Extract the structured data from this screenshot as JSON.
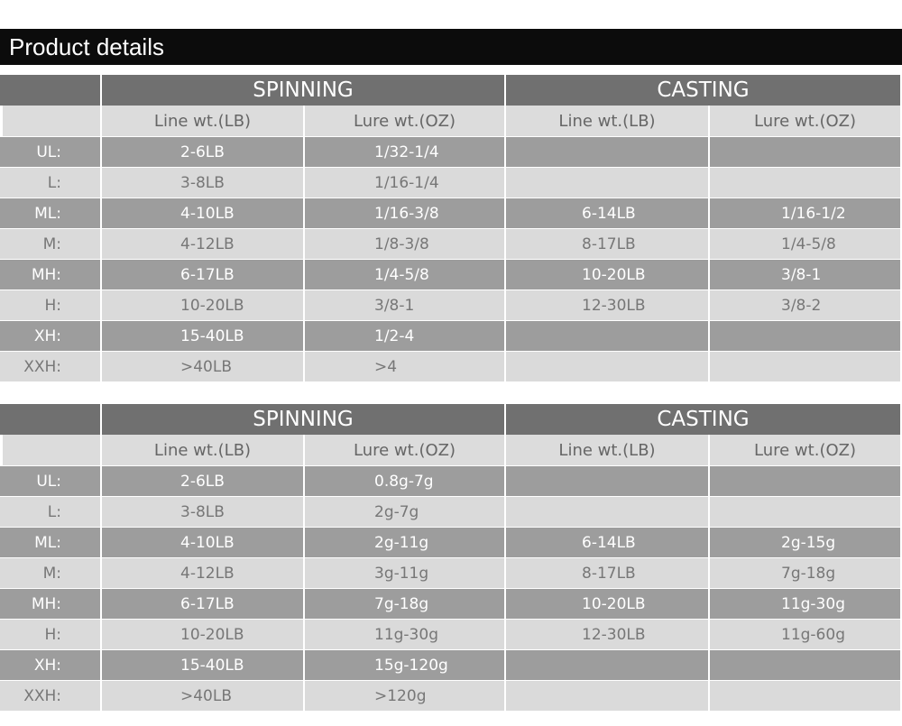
{
  "title": "Product details",
  "tables": [
    {
      "headers": [
        "SPINNING",
        "CASTING"
      ],
      "subheaders": [
        "Line wt.(LB)",
        "Lure wt.(OZ)",
        "Line wt.(LB)",
        "Lure wt.(OZ)"
      ],
      "rows": [
        {
          "label": "UL:",
          "cells": [
            "2-6LB",
            "1/32-1/4",
            null,
            null
          ]
        },
        {
          "label": "L:",
          "cells": [
            "3-8LB",
            "1/16-1/4",
            null,
            null
          ]
        },
        {
          "label": "ML:",
          "cells": [
            "4-10LB",
            "1/16-3/8",
            "6-14LB",
            "1/16-1/2"
          ]
        },
        {
          "label": "M:",
          "cells": [
            "4-12LB",
            "1/8-3/8",
            "8-17LB",
            "1/4-5/8"
          ]
        },
        {
          "label": "MH:",
          "cells": [
            "6-17LB",
            "1/4-5/8",
            "10-20LB",
            "3/8-1"
          ]
        },
        {
          "label": "H:",
          "cells": [
            "10-20LB",
            "3/8-1",
            "12-30LB",
            "3/8-2"
          ]
        },
        {
          "label": "XH:",
          "cells": [
            "15-40LB",
            "1/2-4",
            null,
            null
          ]
        },
        {
          "label": "XXH:",
          "cells": [
            ">40LB",
            ">4",
            null,
            null
          ]
        }
      ]
    },
    {
      "headers": [
        "SPINNING",
        "CASTING"
      ],
      "subheaders": [
        "Line wt.(LB)",
        "Lure wt.(OZ)",
        "Line wt.(LB)",
        "Lure wt.(OZ)"
      ],
      "rows": [
        {
          "label": "UL:",
          "cells": [
            "2-6LB",
            "0.8g-7g",
            null,
            null
          ]
        },
        {
          "label": "L:",
          "cells": [
            "3-8LB",
            "2g-7g",
            null,
            null
          ]
        },
        {
          "label": "ML:",
          "cells": [
            "4-10LB",
            "2g-11g",
            "6-14LB",
            "2g-15g"
          ]
        },
        {
          "label": "M:",
          "cells": [
            "4-12LB",
            "3g-11g",
            "8-17LB",
            "7g-18g"
          ]
        },
        {
          "label": "MH:",
          "cells": [
            "6-17LB",
            "7g-18g",
            "10-20LB",
            "11g-30g"
          ]
        },
        {
          "label": "H:",
          "cells": [
            "10-20LB",
            "11g-30g",
            "12-30LB",
            "11g-60g"
          ]
        },
        {
          "label": "XH:",
          "cells": [
            "15-40LB",
            "15g-120g",
            null,
            null
          ]
        },
        {
          "label": "XXH:",
          "cells": [
            ">40LB",
            ">120g",
            null,
            null
          ]
        }
      ]
    }
  ]
}
